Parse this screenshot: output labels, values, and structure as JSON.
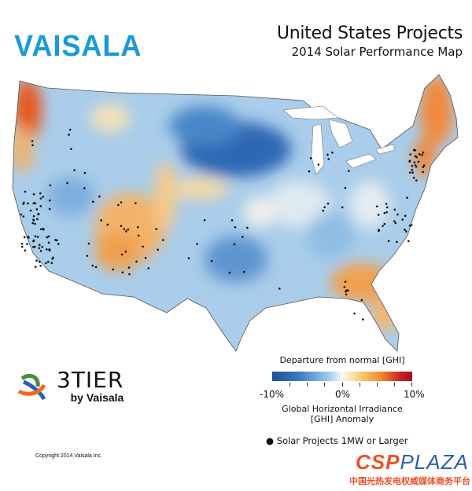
{
  "brand": {
    "logo": "VAISALA",
    "color": "#1a9bd7"
  },
  "header": {
    "title": "United States Projects",
    "subtitle": "2014 Solar Performance Map"
  },
  "partner": {
    "name": "3TIER",
    "tagline": "by Vaisala"
  },
  "copyright": "Copyright 2014  Vaisala Inc.",
  "legend": {
    "title": "Departure from normal [GHI]",
    "ticks": [
      "-10%",
      "0%",
      "10%"
    ],
    "scale_min": -10,
    "scale_max": 10,
    "colors": {
      "low": "#1f4e96",
      "mid": "#fbfbf6",
      "high": "#a01520"
    },
    "caption_line1": "Global Horizontal Irradiance",
    "caption_line2": "[GHI] Anomaly",
    "marker_label": "Solar Projects 1MW or Larger"
  },
  "watermark": {
    "logo_a": "CSP",
    "logo_b": "PLAZA",
    "chinese": "中国光热发电权威媒体商务平台"
  }
}
